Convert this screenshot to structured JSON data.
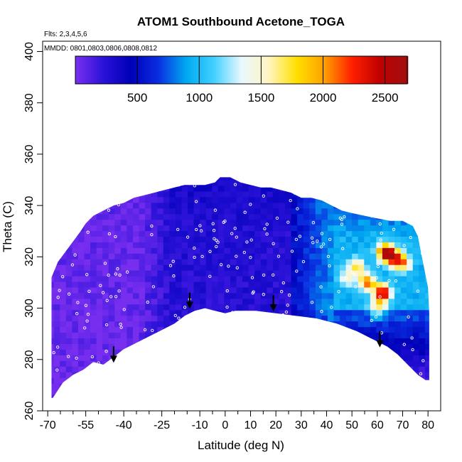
{
  "chart_data": {
    "type": "heatmap",
    "title": "ATOM1 Southbound Acetone_TOGA",
    "notes": [
      "Flts: 2,3,4,5,6",
      "MMDD: 0801,0803,0806,0808,0812"
    ],
    "xlabel": "Latitude (deg N)",
    "ylabel": "Theta (C)",
    "xlim": [
      -72,
      85
    ],
    "ylim": [
      260,
      404
    ],
    "x_ticks": [
      -70,
      -55,
      -40,
      -25,
      -10,
      0,
      10,
      20,
      30,
      40,
      50,
      60,
      70,
      80
    ],
    "x_minor_ticks": [
      -65,
      -60,
      -50,
      -45,
      -35,
      -30,
      -20,
      -15,
      -5,
      5,
      15,
      25,
      35,
      45,
      55,
      65,
      75
    ],
    "y_ticks": [
      260,
      280,
      300,
      320,
      340,
      360,
      380,
      400
    ],
    "colorbar": {
      "range": [
        0,
        2680
      ],
      "ticks": [
        500,
        1000,
        1500,
        2000,
        2500
      ],
      "colors": [
        "#7b2ff0",
        "#2a12d8",
        "#0000b8",
        "#0a2ee0",
        "#00a8f0",
        "#40d0ff",
        "#e8f8ff",
        "#fff5c0",
        "#ffe000",
        "#ffa000",
        "#ff2000",
        "#c00000",
        "#a01010"
      ]
    },
    "boundary": {
      "top": [
        [
          -68.5,
          312
        ],
        [
          -66,
          318
        ],
        [
          -63,
          322
        ],
        [
          -60,
          326
        ],
        [
          -57,
          330
        ],
        [
          -55,
          333
        ],
        [
          -52,
          336
        ],
        [
          -48,
          338
        ],
        [
          -44,
          340
        ],
        [
          -40,
          341
        ],
        [
          -36,
          343
        ],
        [
          -32,
          344
        ],
        [
          -28,
          345
        ],
        [
          -24,
          346
        ],
        [
          -20,
          347
        ],
        [
          -16,
          348
        ],
        [
          -12,
          348
        ],
        [
          -8,
          348
        ],
        [
          -4,
          349
        ],
        [
          -2,
          351
        ],
        [
          2,
          351
        ],
        [
          6,
          349
        ],
        [
          10,
          348
        ],
        [
          14,
          347
        ],
        [
          18,
          347
        ],
        [
          22,
          346
        ],
        [
          26,
          345
        ],
        [
          30,
          343
        ],
        [
          34,
          343
        ],
        [
          38,
          342
        ],
        [
          42,
          340
        ],
        [
          44,
          339
        ],
        [
          46,
          338
        ],
        [
          50,
          337
        ],
        [
          55,
          336
        ],
        [
          60,
          335
        ],
        [
          65,
          334
        ],
        [
          70,
          334
        ],
        [
          74,
          332
        ],
        [
          76,
          328
        ],
        [
          78,
          318
        ],
        [
          80,
          308
        ],
        [
          80.5,
          298
        ]
      ],
      "bottom": [
        [
          80.5,
          272
        ],
        [
          79,
          272
        ],
        [
          76,
          274
        ],
        [
          72,
          278
        ],
        [
          68,
          282
        ],
        [
          64,
          285
        ],
        [
          60,
          287
        ],
        [
          52,
          291
        ],
        [
          44,
          294
        ],
        [
          36,
          296
        ],
        [
          28,
          297
        ],
        [
          20,
          298
        ],
        [
          12,
          299
        ],
        [
          4,
          299
        ],
        [
          0,
          298
        ],
        [
          -4,
          299
        ],
        [
          -8,
          300
        ],
        [
          -12,
          299
        ],
        [
          -16,
          297
        ],
        [
          -20,
          294
        ],
        [
          -26,
          291
        ],
        [
          -32,
          288
        ],
        [
          -36,
          286
        ],
        [
          -40,
          284
        ],
        [
          -44,
          281
        ],
        [
          -48,
          278
        ],
        [
          -52,
          279
        ],
        [
          -56,
          276
        ],
        [
          -60,
          274
        ],
        [
          -64,
          271
        ],
        [
          -68,
          265
        ],
        [
          -68.5,
          265
        ]
      ]
    },
    "hotspots": [
      {
        "lat": 56,
        "theta": 310,
        "value": 1800
      },
      {
        "lat": 62,
        "theta": 306,
        "value": 2300
      },
      {
        "lat": 63,
        "theta": 322,
        "value": 2100
      },
      {
        "lat": 66,
        "theta": 320,
        "value": 1900
      },
      {
        "lat": 70,
        "theta": 318,
        "value": 1700
      },
      {
        "lat": 52,
        "theta": 316,
        "value": 1500
      },
      {
        "lat": 60,
        "theta": 300,
        "value": 1400
      },
      {
        "lat": 48,
        "theta": 312,
        "value": 1200
      }
    ],
    "arrows": [
      {
        "lat": -44,
        "theta": 279
      },
      {
        "lat": -14,
        "theta": 300
      },
      {
        "lat": 19,
        "theta": 299
      },
      {
        "lat": 61,
        "theta": 285
      }
    ]
  }
}
